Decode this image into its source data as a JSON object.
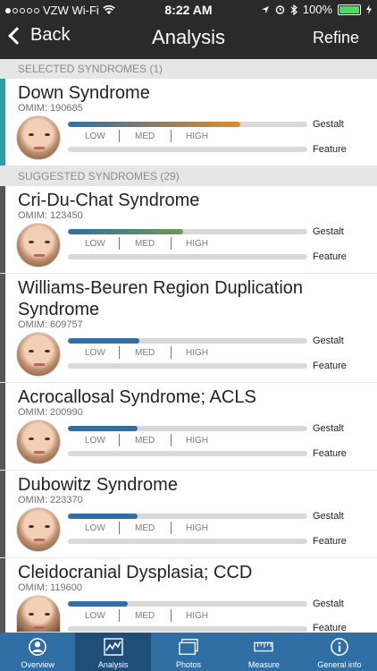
{
  "status_bar": {
    "carrier": "VZW Wi-Fi",
    "time": "8:22 AM",
    "battery": "100%"
  },
  "nav": {
    "back_label": "Back",
    "title": "Analysis",
    "refine_label": "Refine"
  },
  "selected_header": "SELECTED SYNDROMES (1)",
  "suggested_header": "SUGGESTED SYNDROMES (29)",
  "scale_labels": {
    "low": "LOW",
    "med": "MED",
    "high": "HIGH"
  },
  "bar_labels": {
    "gestalt": "Gestalt",
    "feature": "Feature"
  },
  "syndromes": [
    {
      "name": "Down Syndrome",
      "omim": "OMIM: 190685",
      "gestalt": 0.72,
      "feature": 0.0
    },
    {
      "name": "Cri-Du-Chat Syndrome",
      "omim": "OMIM: 123450",
      "gestalt": 0.48,
      "feature": 0.0
    },
    {
      "name": "Williams-Beuren Region Duplication Syndrome",
      "omim": "OMIM: 609757",
      "gestalt": 0.3,
      "feature": 0.0
    },
    {
      "name": "Acrocallosal Syndrome; ACLS",
      "omim": "OMIM: 200990",
      "gestalt": 0.29,
      "feature": 0.0
    },
    {
      "name": "Dubowitz Syndrome",
      "omim": "OMIM: 223370",
      "gestalt": 0.29,
      "feature": 0.0
    },
    {
      "name": "Cleidocranial Dysplasia; CCD",
      "omim": "OMIM: 119600",
      "gestalt": 0.25,
      "feature": 0.0
    }
  ],
  "tabs": [
    {
      "label": "Overview",
      "icon": "person-circle-icon",
      "active": false
    },
    {
      "label": "Analysis",
      "icon": "chart-icon",
      "active": true
    },
    {
      "label": "Photos",
      "icon": "photos-icon",
      "active": false
    },
    {
      "label": "Measure",
      "icon": "ruler-icon",
      "active": false
    },
    {
      "label": "General info",
      "icon": "info-icon",
      "active": false
    }
  ],
  "colors": {
    "selected_accent": "#2aa0a6",
    "bar_low": "#2f6fa6",
    "bar_high": "#e08a2c",
    "tabbar": "#2f6fa6"
  }
}
